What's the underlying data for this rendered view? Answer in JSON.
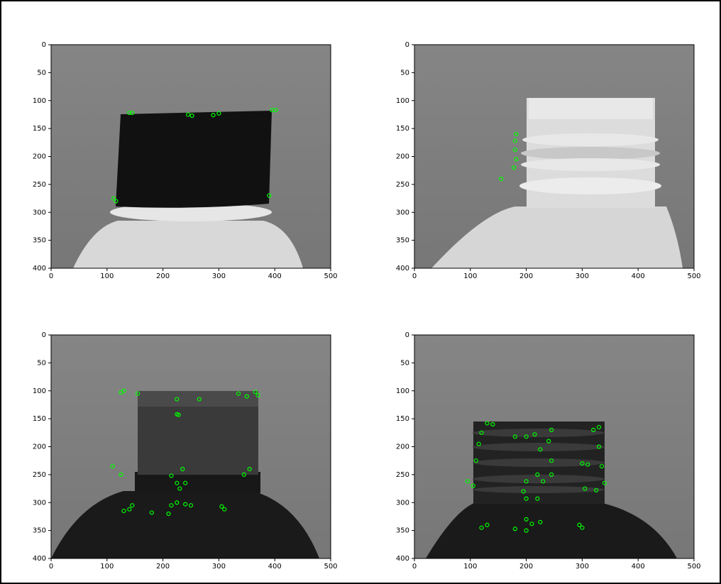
{
  "chart_data": [
    {
      "type": "scatter",
      "color": "#00ff00",
      "xlim": [
        0,
        500
      ],
      "ylim": [
        400,
        0
      ],
      "xticks": [
        0,
        100,
        200,
        300,
        400,
        500
      ],
      "yticks": [
        0,
        50,
        100,
        150,
        200,
        250,
        300,
        350,
        400
      ],
      "x": [
        140,
        145,
        245,
        252,
        290,
        300,
        395,
        402,
        112,
        116,
        390
      ],
      "y": [
        122,
        122,
        125,
        127,
        126,
        123,
        117,
        117,
        275,
        280,
        270
      ]
    },
    {
      "type": "scatter",
      "color": "#00ff00",
      "xlim": [
        0,
        500
      ],
      "ylim": [
        400,
        0
      ],
      "xticks": [
        0,
        100,
        200,
        300,
        400,
        500
      ],
      "yticks": [
        0,
        50,
        100,
        150,
        200,
        250,
        300,
        350,
        400
      ],
      "x": [
        182,
        180,
        180,
        182,
        178,
        155
      ],
      "y": [
        160,
        172,
        188,
        205,
        220,
        240
      ]
    },
    {
      "type": "scatter",
      "color": "#00ff00",
      "xlim": [
        0,
        500
      ],
      "ylim": [
        400,
        0
      ],
      "xticks": [
        0,
        100,
        200,
        300,
        400,
        500
      ],
      "yticks": [
        0,
        50,
        100,
        150,
        200,
        250,
        300,
        350,
        400
      ],
      "x": [
        130,
        125,
        155,
        225,
        225,
        228,
        265,
        335,
        350,
        365,
        370,
        110,
        125,
        235,
        215,
        225,
        240,
        230,
        345,
        355,
        145,
        140,
        130,
        180,
        210,
        215,
        225,
        240,
        250,
        305,
        310
      ],
      "y": [
        100,
        103,
        105,
        115,
        142,
        143,
        115,
        105,
        110,
        102,
        108,
        235,
        250,
        240,
        252,
        265,
        265,
        275,
        250,
        240,
        305,
        312,
        315,
        318,
        320,
        305,
        300,
        303,
        305,
        307,
        312
      ]
    },
    {
      "type": "scatter",
      "color": "#00ff00",
      "xlim": [
        0,
        500
      ],
      "ylim": [
        400,
        0
      ],
      "xticks": [
        0,
        100,
        200,
        300,
        400,
        500
      ],
      "yticks": [
        0,
        50,
        100,
        150,
        200,
        250,
        300,
        350,
        400
      ],
      "x": [
        130,
        140,
        120,
        115,
        110,
        95,
        105,
        180,
        200,
        215,
        245,
        240,
        225,
        245,
        220,
        245,
        200,
        230,
        195,
        200,
        220,
        300,
        310,
        320,
        330,
        330,
        335,
        340,
        305,
        325,
        120,
        130,
        200,
        210,
        225,
        180,
        200,
        300,
        295
      ],
      "y": [
        158,
        160,
        175,
        195,
        225,
        262,
        270,
        182,
        182,
        178,
        170,
        190,
        205,
        225,
        250,
        250,
        262,
        262,
        280,
        293,
        293,
        230,
        232,
        170,
        165,
        200,
        235,
        265,
        275,
        278,
        345,
        340,
        330,
        338,
        335,
        347,
        350,
        345,
        340
      ]
    }
  ]
}
